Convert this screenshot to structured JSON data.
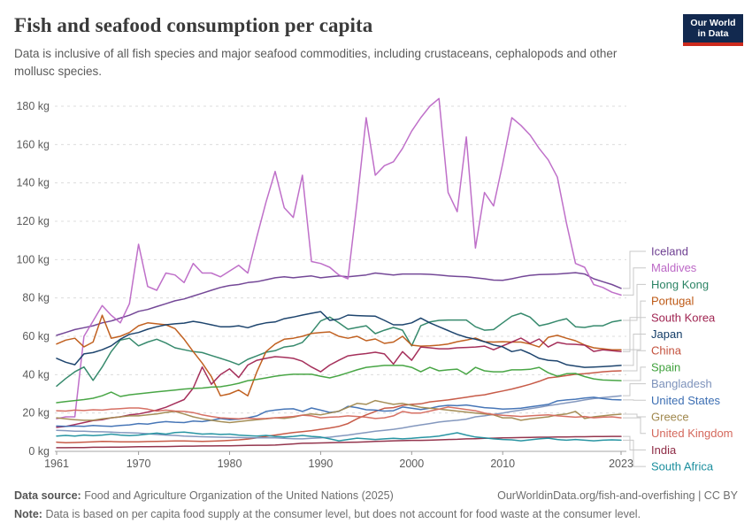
{
  "header": {
    "title": "Fish and seafood consumption per capita",
    "subtitle": "Data is inclusive of all fish species and major seafood commodities, including crustaceans, cephalopods and other mollusc species.",
    "logo_line1": "Our World",
    "logo_line2": "in Data"
  },
  "footer": {
    "source_label": "Data source:",
    "source": "Food and Agriculture Organization of the United Nations (2025)",
    "credit": "OurWorldinData.org/fish-and-overfishing | CC BY",
    "note_label": "Note:",
    "note": "Data is based on per capita food supply at the consumer level, but does not account for food waste at the consumer level."
  },
  "chart_data": {
    "type": "line",
    "title": "Fish and seafood consumption per capita",
    "xlabel": "",
    "ylabel": "",
    "unit": "kg",
    "grid": true,
    "legend_position": "right",
    "ylim": [
      0,
      185
    ],
    "y_ticks": [
      0,
      20,
      40,
      60,
      80,
      100,
      120,
      140,
      160,
      180
    ],
    "x_ticks": [
      1961,
      1970,
      1980,
      1990,
      2000,
      2010,
      2023
    ],
    "x_start": 1961,
    "x_end": 2023,
    "series": [
      {
        "name": "Iceland",
        "color": "#6D3E91",
        "values": [
          60.5,
          62,
          63.5,
          64.5,
          65.5,
          67,
          68,
          69.5,
          71,
          73,
          74,
          75.5,
          77,
          78.5,
          79.5,
          81,
          82.5,
          84,
          85.5,
          86.5,
          87,
          88,
          88.5,
          89.5,
          90.5,
          91,
          90.5,
          91,
          91.5,
          90.5,
          91,
          91.5,
          91,
          91.5,
          92,
          93,
          92.5,
          92,
          92.5,
          92.5,
          92.5,
          92.3,
          92,
          91.5,
          91.2,
          91,
          90.5,
          90,
          89.3,
          89.2,
          90,
          91,
          91.8,
          92.2,
          92.3,
          92.5,
          92.8,
          93.2,
          92.5,
          90,
          88.5,
          87,
          85
        ]
      },
      {
        "name": "Maldives",
        "color": "#BC68C6",
        "values": [
          17,
          18,
          18,
          60,
          68,
          76,
          71,
          67,
          77,
          108,
          86,
          84,
          93,
          92,
          88,
          98,
          93,
          93,
          91,
          94,
          97,
          93,
          112,
          130,
          146,
          127,
          122,
          144,
          99,
          98,
          96,
          92,
          90,
          130,
          174,
          144,
          149,
          151,
          158,
          167,
          174,
          180,
          184,
          135,
          125,
          164,
          106,
          135,
          128,
          150,
          174,
          170,
          165,
          158,
          152,
          143,
          119,
          98,
          96,
          87,
          85.5,
          83,
          81.5
        ]
      },
      {
        "name": "Hong Kong",
        "color": "#2C8465",
        "values": [
          34,
          38,
          41.5,
          44,
          37,
          44,
          52,
          58,
          59,
          55,
          57,
          58.5,
          56.5,
          54,
          53,
          52,
          51.5,
          50,
          48.5,
          47,
          45.2,
          48,
          49.8,
          51.7,
          52.5,
          54.4,
          55,
          56.8,
          62,
          68,
          70,
          67,
          63.7,
          64.6,
          65.5,
          61.4,
          63.2,
          64.6,
          63.2,
          55,
          65.5,
          67.5,
          68.3,
          68.5,
          68.5,
          68.5,
          65,
          63.2,
          63.5,
          67,
          70.5,
          72,
          70,
          65.5,
          66.5,
          68,
          69.2,
          65,
          64.6,
          65.5,
          65.5,
          67.5,
          68.3
        ]
      },
      {
        "name": "Portugal",
        "color": "#BE5915",
        "values": [
          56,
          58,
          59,
          54.5,
          57,
          71,
          59,
          60,
          62,
          65.5,
          67,
          66.5,
          66,
          64,
          58.5,
          52,
          46,
          39,
          29,
          30,
          32,
          29,
          41.5,
          52,
          56,
          58.5,
          59,
          60,
          61.5,
          62,
          62.3,
          60,
          59,
          60,
          57.7,
          58.6,
          56.3,
          57,
          60,
          55.4,
          54.9,
          55,
          55.4,
          56,
          57.2,
          58,
          59.1,
          57.2,
          57,
          57.2,
          57,
          57,
          56,
          54.4,
          59.5,
          60.5,
          59,
          57.7,
          55.5,
          54,
          53.5,
          53,
          53
        ]
      },
      {
        "name": "South Korea",
        "color": "#A02552",
        "values": [
          12.5,
          13,
          14,
          15,
          16,
          16.5,
          17.5,
          18,
          19,
          19.5,
          20.5,
          21.5,
          23,
          25,
          27,
          33,
          44,
          35,
          40,
          43,
          38.5,
          45,
          47.5,
          48.5,
          49.4,
          49,
          48.5,
          47,
          44,
          41.5,
          45,
          47.5,
          49.8,
          50.5,
          51,
          51.7,
          50.8,
          45.5,
          52,
          47.5,
          54.4,
          54,
          53.5,
          53.5,
          54,
          54.2,
          54.4,
          54.9,
          53,
          55,
          57,
          59.1,
          56.3,
          58.6,
          54.4,
          56.8,
          56,
          55.8,
          55.4,
          52.1,
          53,
          52.5,
          52
        ]
      },
      {
        "name": "Japan",
        "color": "#123B66",
        "values": [
          48.5,
          46.5,
          45.2,
          50.8,
          51.5,
          53,
          55,
          58.5,
          61,
          62,
          63.7,
          65,
          66,
          66.5,
          66.9,
          67.8,
          67,
          66,
          65,
          65,
          65.5,
          64.5,
          66,
          67,
          67.5,
          69.2,
          70,
          71.1,
          72,
          72.9,
          68.3,
          69,
          71.1,
          70.8,
          70.6,
          70.5,
          68.3,
          66,
          66,
          67,
          69.5,
          67,
          65,
          63,
          61,
          59.5,
          58.5,
          57.2,
          55.5,
          54.5,
          52,
          53,
          51,
          48.5,
          47.5,
          47.1,
          45.2,
          44.5,
          43.8,
          44,
          44.2,
          44.5,
          44.8
        ]
      },
      {
        "name": "China",
        "color": "#C4523E",
        "values": [
          4.8,
          4.5,
          4.6,
          4.8,
          5,
          5.2,
          5.1,
          5,
          5,
          5,
          5.1,
          5.2,
          5.3,
          5.4,
          5.4,
          5.3,
          5.2,
          5.3,
          5.5,
          5.7,
          6,
          6.4,
          7,
          7.8,
          8.5,
          9.2,
          9.8,
          10.3,
          10.8,
          11.5,
          12.2,
          13,
          14.5,
          17,
          19,
          20.8,
          22.5,
          22.8,
          24,
          24.5,
          24.8,
          25.8,
          26.3,
          26.8,
          27.5,
          28.2,
          29,
          29.5,
          30.5,
          31.5,
          32.5,
          33.7,
          35,
          36.5,
          38.3,
          38.8,
          39.5,
          40.2,
          40.5,
          41,
          41.5,
          41.8,
          42
        ]
      },
      {
        "name": "Spain",
        "color": "#3FA13C",
        "values": [
          25.4,
          26,
          26.5,
          27,
          27.7,
          29,
          30.9,
          28.6,
          29.5,
          30,
          30.5,
          31,
          31.5,
          32,
          32.5,
          32.8,
          33,
          33.5,
          33.7,
          34.5,
          35.5,
          36.9,
          37.5,
          38.3,
          39.2,
          39.8,
          40.2,
          40.2,
          40.2,
          39.2,
          38.3,
          39.5,
          41,
          42.5,
          43.8,
          44.3,
          44.8,
          44.8,
          44.8,
          43.8,
          41.5,
          43.8,
          42,
          42.5,
          42.9,
          40.2,
          43.8,
          42,
          41.5,
          41.5,
          42.5,
          42.5,
          42.8,
          43.8,
          41,
          39.2,
          40.5,
          40.6,
          39,
          37.8,
          37.2,
          37,
          36.9
        ]
      },
      {
        "name": "Bangladesh",
        "color": "#7D92BB",
        "values": [
          11,
          10.8,
          10.5,
          10.5,
          10.3,
          10.2,
          10,
          9.8,
          9.7,
          9.5,
          9.2,
          8.8,
          8.5,
          8.3,
          8,
          7.8,
          7.6,
          7.5,
          7.4,
          7.3,
          7.2,
          7.1,
          7,
          7,
          7,
          6.8,
          6.6,
          6.5,
          6.8,
          7,
          7.4,
          8,
          8.5,
          9.2,
          9.8,
          10.5,
          11,
          11.5,
          12.2,
          13,
          13.8,
          14.5,
          15.3,
          15.8,
          16.2,
          16.8,
          18,
          18.5,
          19.3,
          20,
          20.8,
          21.5,
          22.3,
          23,
          23.8,
          24.5,
          25.3,
          26,
          26.8,
          27.5,
          28,
          28.5,
          29
        ]
      },
      {
        "name": "United States",
        "color": "#3D6FB3",
        "values": [
          13.2,
          13,
          13.2,
          13,
          13.5,
          13.2,
          13,
          13.5,
          13.8,
          14.5,
          14.2,
          15,
          15.5,
          15.2,
          15,
          15.8,
          15.5,
          16.2,
          17.1,
          16.5,
          16.8,
          17.5,
          18.5,
          20.8,
          21.5,
          22,
          22.2,
          20.8,
          22.6,
          21.5,
          20.3,
          20.8,
          23.5,
          22.8,
          21.7,
          21.5,
          21,
          21.2,
          23.1,
          22.5,
          21.8,
          22.5,
          23.5,
          24,
          23.8,
          24.2,
          23.5,
          22.8,
          22.5,
          22,
          22.2,
          22.5,
          23.2,
          23.8,
          24.5,
          26.3,
          26.8,
          27.2,
          27.8,
          28.2,
          27.5,
          27,
          26.8
        ]
      },
      {
        "name": "Greece",
        "color": "#A0884E",
        "values": [
          17.5,
          17,
          16.5,
          16.2,
          16.2,
          17,
          17.5,
          18,
          18.5,
          18.5,
          19,
          19.5,
          20.3,
          20.8,
          19.5,
          18,
          17,
          16.2,
          15.5,
          15,
          15.5,
          16,
          16.5,
          17,
          17.5,
          17.2,
          17.8,
          18.9,
          19.5,
          19,
          20,
          21,
          23,
          25,
          24.5,
          26.5,
          25.5,
          24.5,
          25,
          24,
          23,
          22.5,
          22,
          21.5,
          21,
          20.5,
          20,
          19.5,
          19,
          17.5,
          17.5,
          16.2,
          17,
          17.5,
          18,
          19,
          19.5,
          20.8,
          17.1,
          18,
          18.5,
          19,
          19.4
        ]
      },
      {
        "name": "United Kingdom",
        "color": "#D4685C",
        "values": [
          21.2,
          21,
          21.5,
          21.3,
          21.7,
          21.5,
          22,
          22.3,
          22.6,
          22.6,
          22,
          21,
          21.5,
          21,
          20.8,
          20.2,
          19,
          18.2,
          17.5,
          17.2,
          17,
          17.3,
          17,
          17.1,
          17.5,
          17.8,
          18.2,
          18.9,
          18.5,
          17.5,
          17.8,
          18,
          18.5,
          18.2,
          17.8,
          17.1,
          17.5,
          18.5,
          20.8,
          20,
          20,
          21,
          22,
          23.1,
          22.5,
          21.8,
          21.2,
          20,
          19.2,
          18.8,
          18.5,
          18.2,
          18.5,
          18.8,
          19,
          18.5,
          18.2,
          17.8,
          18.2,
          17.5,
          17.8,
          18,
          17.5
        ]
      },
      {
        "name": "India",
        "color": "#8E2B45",
        "values": [
          1.9,
          1.9,
          2,
          2,
          2.1,
          2.1,
          2.2,
          2.2,
          2.3,
          2.4,
          2.4,
          2.5,
          2.5,
          2.6,
          2.7,
          2.7,
          2.8,
          2.8,
          2.9,
          2.9,
          3,
          3.1,
          3.2,
          3.2,
          3.3,
          3.6,
          3.9,
          4.2,
          4.3,
          4.4,
          4.5,
          4.6,
          4.7,
          4.8,
          5,
          5.2,
          5.3,
          5.5,
          5.6,
          5.7,
          5.7,
          5.8,
          6,
          6.2,
          6.3,
          6.5,
          6.6,
          6.8,
          6.9,
          7,
          7.1,
          7.2,
          7.3,
          7.4,
          7.4,
          7.5,
          7.5,
          7.6,
          7.6,
          7.7,
          7.7,
          7.8,
          7.8
        ]
      },
      {
        "name": "South Africa",
        "color": "#1C8F9E",
        "values": [
          8,
          8.3,
          8,
          8.5,
          8.2,
          8.5,
          9,
          8.5,
          8.2,
          8.5,
          9,
          9.5,
          9,
          9.8,
          10,
          9.5,
          9,
          9.2,
          8.8,
          9,
          8.5,
          8.2,
          8,
          8.3,
          7.8,
          7.5,
          7.8,
          8.3,
          7.8,
          7.5,
          6.5,
          5.5,
          6.2,
          6.9,
          6.5,
          6.2,
          6.5,
          6.8,
          6.5,
          6.8,
          7.2,
          7.5,
          8,
          8.8,
          9.7,
          8.5,
          7.5,
          7,
          6.5,
          6.2,
          6,
          5.5,
          6,
          6.5,
          6.9,
          6.2,
          5.8,
          6.2,
          5.8,
          5.5,
          5.8,
          6,
          5.8
        ]
      }
    ]
  }
}
